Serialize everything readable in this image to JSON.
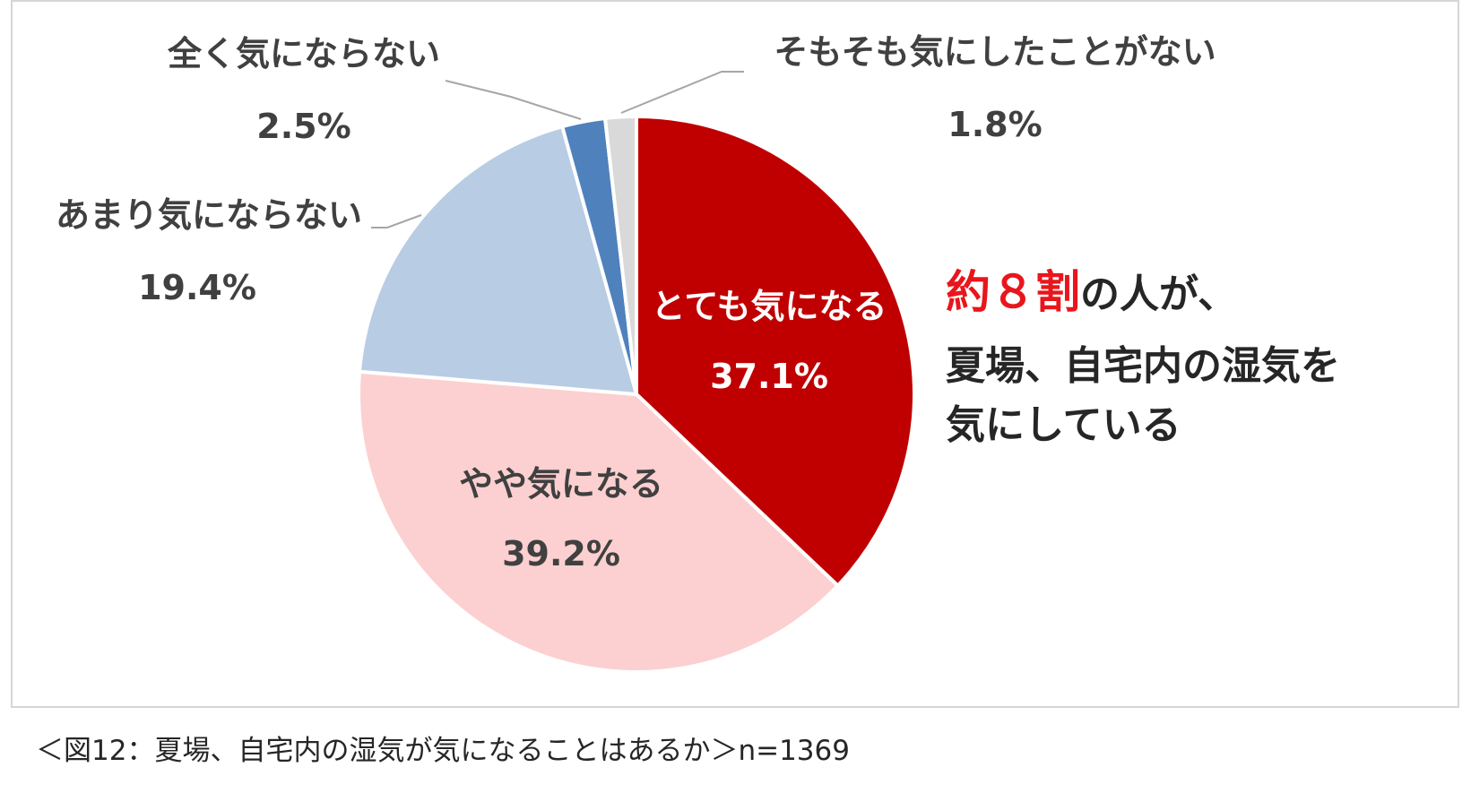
{
  "chart_data": {
    "type": "pie",
    "slices": [
      {
        "label": "とても気になる",
        "value": 37.1,
        "value_label": "37.1%",
        "color": "#c00000"
      },
      {
        "label": "やや気になる",
        "value": 39.2,
        "value_label": "39.2%",
        "color": "#fcd0d0"
      },
      {
        "label": "あまり気にならない",
        "value": 19.4,
        "value_label": "19.4%",
        "color": "#b8cce4"
      },
      {
        "label": "全く気にならない",
        "value": 2.5,
        "value_label": "2.5%",
        "color": "#4f81bd"
      },
      {
        "label": "そもそも気にしたことがない",
        "value": 1.8,
        "value_label": "1.8%",
        "color": "#d9d9d9"
      }
    ],
    "start_angle": "top",
    "direction": "clockwise",
    "label_color_dark": "#404040",
    "label_color_light": "#ffffff",
    "leader_line_color": "#a6a6a6"
  },
  "annotation": {
    "highlight": "約８割",
    "rest_line1": "の人が、",
    "line2": "夏場、自宅内の湿気を",
    "line3": "気にしている",
    "highlight_color": "#e8161c"
  },
  "caption": "＜図12：夏場、自宅内の湿気が気になることはあるか＞n=1369"
}
